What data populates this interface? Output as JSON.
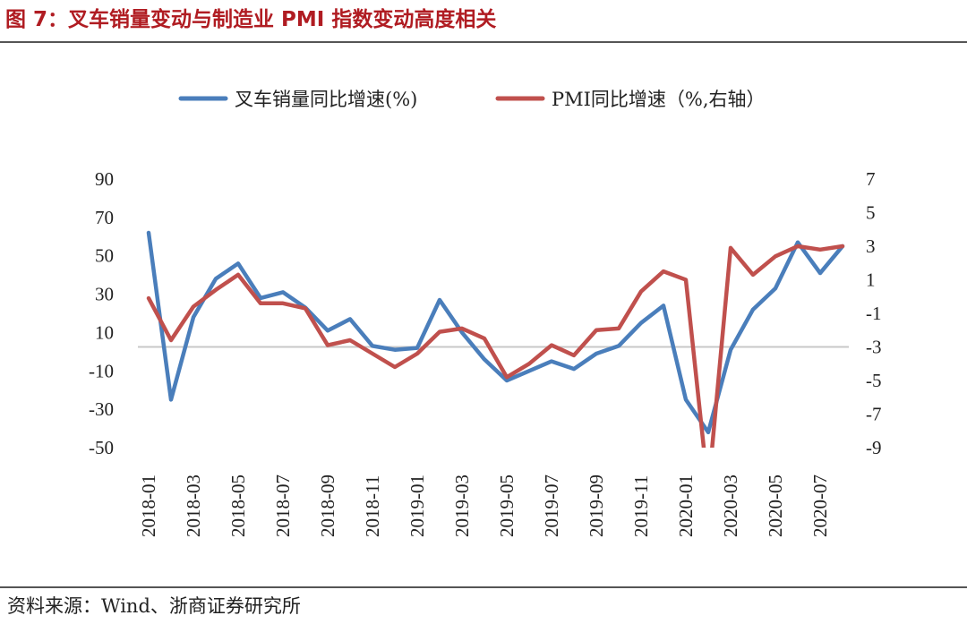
{
  "page": {
    "title": "图 7：叉车销量变动与制造业 PMI 指数变动高度相关",
    "source": "资料来源：Wind、浙商证券研究所"
  },
  "chart_data": {
    "type": "line",
    "title": "",
    "x": [
      "2018-01",
      "2018-02",
      "2018-03",
      "2018-04",
      "2018-05",
      "2018-06",
      "2018-07",
      "2018-08",
      "2018-09",
      "2018-10",
      "2018-11",
      "2018-12",
      "2019-01",
      "2019-02",
      "2019-03",
      "2019-04",
      "2019-05",
      "2019-06",
      "2019-07",
      "2019-08",
      "2019-09",
      "2019-10",
      "2019-11",
      "2019-12",
      "2020-01",
      "2020-02",
      "2020-03",
      "2020-04",
      "2020-05",
      "2020-06",
      "2020-07",
      "2020-08"
    ],
    "x_tick_labels": [
      "2018-01",
      "2018-03",
      "2018-05",
      "2018-07",
      "2018-09",
      "2018-11",
      "2019-01",
      "2019-03",
      "2019-05",
      "2019-07",
      "2019-09",
      "2019-11",
      "2020-01",
      "2020-03",
      "2020-05",
      "2020-07"
    ],
    "left_axis": {
      "ylim": [
        -50,
        90
      ],
      "ticks": [
        90,
        70,
        50,
        30,
        10,
        -10,
        -30,
        -50
      ]
    },
    "right_axis": {
      "ylim": [
        -9,
        7
      ],
      "ticks": [
        7,
        5,
        3,
        1,
        -1,
        -3,
        -5,
        -7,
        -9
      ]
    },
    "reference_line": {
      "value": -3,
      "axis": "right",
      "color": "#c8c8c8"
    },
    "legend_placement": "top",
    "series": [
      {
        "name": "叉车销量同比增速(%)",
        "axis": "left",
        "color": "#4a7ebb",
        "values": [
          62,
          -25,
          18,
          38,
          46,
          28,
          31,
          23,
          11,
          17,
          3,
          1,
          2,
          27,
          10,
          -4,
          -15,
          -10,
          -5,
          -9,
          -1,
          3,
          15,
          24,
          -25,
          -42,
          1,
          22,
          33,
          57,
          41,
          55
        ]
      },
      {
        "name": "PMI同比增速（%,右轴）",
        "axis": "right",
        "color": "#c0504d",
        "values": [
          -0.1,
          -2.6,
          -0.6,
          0.4,
          1.3,
          -0.4,
          -0.4,
          -0.7,
          -2.9,
          -2.6,
          -3.4,
          -4.2,
          -3.4,
          -2.1,
          -1.9,
          -2.5,
          -4.8,
          -4.0,
          -2.9,
          -3.5,
          -2.0,
          -1.9,
          0.3,
          1.5,
          1.0,
          -11.5,
          2.9,
          1.3,
          2.4,
          3.0,
          2.8,
          3.0
        ]
      }
    ]
  }
}
